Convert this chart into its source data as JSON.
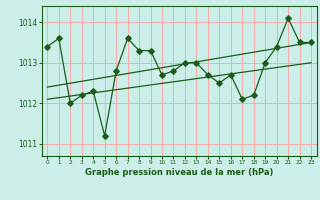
{
  "title": "Graphe pression niveau de la mer (hPa)",
  "background_color": "#cceee8",
  "grid_color": "#f5aaaa",
  "line_color": "#1a5c1a",
  "xlim": [
    -0.5,
    23.5
  ],
  "ylim": [
    1010.7,
    1014.4
  ],
  "yticks": [
    1011,
    1012,
    1013,
    1014
  ],
  "xticks": [
    0,
    1,
    2,
    3,
    4,
    5,
    6,
    7,
    8,
    9,
    10,
    11,
    12,
    13,
    14,
    15,
    16,
    17,
    18,
    19,
    20,
    21,
    22,
    23
  ],
  "series1_x": [
    0,
    1,
    2,
    3,
    4,
    5,
    6,
    7,
    8,
    9,
    10,
    11,
    12,
    13,
    14,
    15,
    16,
    17,
    18,
    19,
    20,
    21,
    22,
    23
  ],
  "series1_y": [
    1013.4,
    1013.6,
    1012.0,
    1012.2,
    1012.3,
    1011.2,
    1012.8,
    1013.6,
    1013.3,
    1013.3,
    1012.7,
    1012.8,
    1013.0,
    1013.0,
    1012.7,
    1012.5,
    1012.7,
    1012.1,
    1012.2,
    1013.0,
    1013.4,
    1014.1,
    1013.5,
    1013.5
  ],
  "series2_x": [
    0,
    23
  ],
  "series2_y": [
    1012.1,
    1013.0
  ],
  "series3_x": [
    0,
    23
  ],
  "series3_y": [
    1012.4,
    1013.5
  ],
  "ylabel_fontsize": 6,
  "xlabel_fontsize": 4,
  "title_fontsize": 6
}
